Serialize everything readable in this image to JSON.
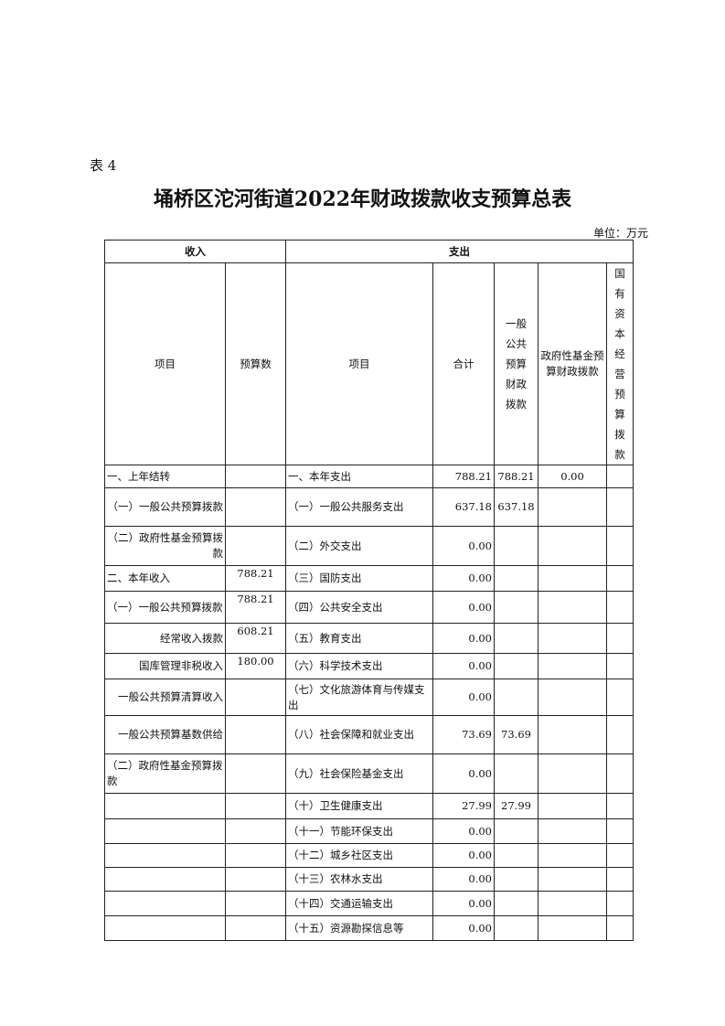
{
  "doc": {
    "label": "表 4",
    "title": "埇桥区沱河街道2022年财政拨款收支预算总表",
    "unit": "单位：万元"
  },
  "header": {
    "income": "收入",
    "expense": "支出",
    "item": "项目",
    "budget": "预算数",
    "item2": "项目",
    "total": "合计",
    "general": "一般公共预算财政拨款",
    "gov_fund": "政府性基金预算财政拨款",
    "state_capital": "国有资本经营预算拨款"
  },
  "rows": [
    [
      "一、上年结转",
      "",
      "一、本年支出",
      "788.21",
      "788.21",
      "0.00",
      ""
    ],
    [
      "（一）一般公共预算拨款",
      "",
      "（一）一般公共服务支出",
      "637.18",
      "637.18",
      "",
      ""
    ],
    [
      "（二）政府性基金预算拨款",
      "",
      "（二）外交支出",
      "0.00",
      "",
      "",
      ""
    ],
    [
      "二、本年收入",
      "788.21",
      "（三）国防支出",
      "0.00",
      "",
      "",
      ""
    ],
    [
      "（一）一般公共预算拨款",
      "788.21",
      "（四）公共安全支出",
      "0.00",
      "",
      "",
      ""
    ],
    [
      "经常收入拨款",
      "608.21",
      "（五）教育支出",
      "0.00",
      "",
      "",
      ""
    ],
    [
      "国库管理非税收入",
      "180.00",
      "（六）科学技术支出",
      "0.00",
      "",
      "",
      ""
    ],
    [
      "一般公共预算清算收入",
      "",
      "（七）文化旅游体育与传媒支出",
      "0.00",
      "",
      "",
      ""
    ],
    [
      "一般公共预算基数供给",
      "",
      "（八）社会保障和就业支出",
      "73.69",
      "73.69",
      "",
      ""
    ],
    [
      "（二）政府性基金预算拨款",
      "",
      "（九）社会保险基金支出",
      "0.00",
      "",
      "",
      ""
    ],
    [
      "",
      "",
      "（十）卫生健康支出",
      "27.99",
      "27.99",
      "",
      ""
    ],
    [
      "",
      "",
      "（十一）节能环保支出",
      "0.00",
      "",
      "",
      ""
    ],
    [
      "",
      "",
      "（十二）城乡社区支出",
      "0.00",
      "",
      "",
      ""
    ],
    [
      "",
      "",
      "（十三）农林水支出",
      "0.00",
      "",
      "",
      ""
    ],
    [
      "",
      "",
      "（十四）交通运输支出",
      "0.00",
      "",
      "",
      ""
    ],
    [
      "",
      "",
      "（十五）资源勘探信息等",
      "0.00",
      "",
      "",
      ""
    ]
  ]
}
